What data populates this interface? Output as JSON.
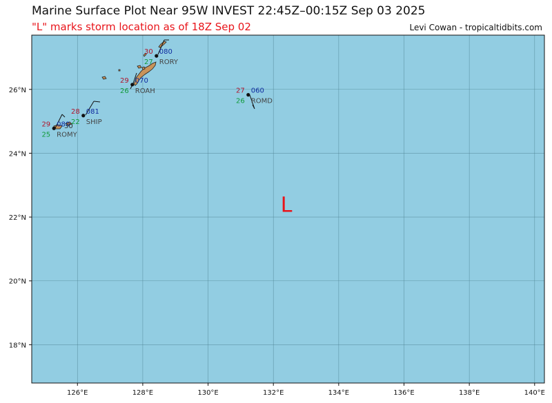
{
  "title": "Marine Surface Plot Near 95W INVEST 22:45Z–00:15Z Sep 03 2025",
  "subtitle": "\"L\" marks storm location as of 18Z Sep 02",
  "credit": "Levi Cowan - tropicaltidbits.com",
  "storm_marker": {
    "label": "L",
    "lon": 132.4,
    "lat": 22.4,
    "color": "#e8141a"
  },
  "map": {
    "lon_range": [
      124.6,
      140.3
    ],
    "lat_range": [
      16.8,
      27.7
    ],
    "ocean_color": "#92cde2",
    "land_color": "#c8935a",
    "x_ticks": [
      "126°E",
      "128°E",
      "130°E",
      "132°E",
      "134°E",
      "136°E",
      "138°E",
      "140°E"
    ],
    "x_tick_values": [
      126,
      128,
      130,
      132,
      134,
      136,
      138,
      140
    ],
    "y_ticks": [
      "18°N",
      "20°N",
      "22°N",
      "24°N",
      "26°N"
    ],
    "y_tick_values": [
      18,
      20,
      22,
      24,
      26
    ]
  },
  "stations": [
    {
      "id": "RORY",
      "lon": 128.42,
      "lat": 27.05,
      "temp": "30",
      "dew": "27",
      "pressure": "080"
    },
    {
      "id": "ROAH",
      "lon": 127.68,
      "lat": 26.15,
      "temp": "29",
      "dew": "26",
      "pressure": "070"
    },
    {
      "id": "ROMD",
      "lon": 131.23,
      "lat": 25.83,
      "temp": "27",
      "dew": "26",
      "pressure": "060"
    },
    {
      "id": "SHIP",
      "lon": 126.18,
      "lat": 25.18,
      "temp": "28",
      "dew": "22",
      "pressure": "081"
    },
    {
      "id": "ROMY",
      "lon": 125.28,
      "lat": 24.78,
      "temp": "29",
      "dew": "25",
      "pressure": "080"
    }
  ],
  "extra_label": "30"
}
